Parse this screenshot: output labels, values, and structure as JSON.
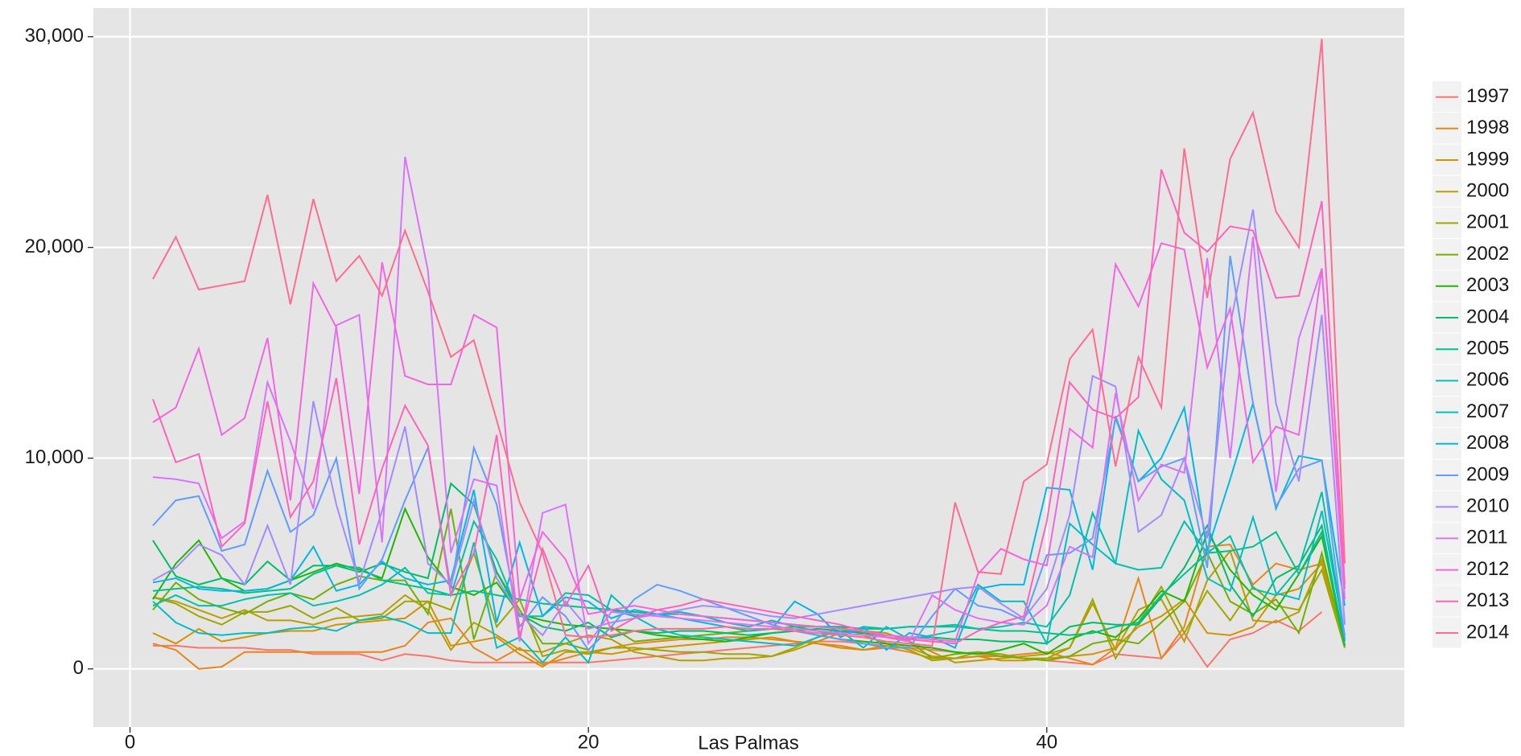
{
  "chart_data": {
    "type": "line",
    "x_label": "Las Palmas",
    "x": [
      1,
      2,
      3,
      4,
      5,
      6,
      7,
      8,
      9,
      10,
      11,
      12,
      13,
      14,
      15,
      16,
      17,
      18,
      19,
      20,
      21,
      22,
      23,
      24,
      25,
      26,
      27,
      28,
      29,
      30,
      31,
      32,
      33,
      34,
      35,
      36,
      37,
      38,
      39,
      40,
      41,
      42,
      43,
      44,
      45,
      46,
      47,
      48,
      49,
      50,
      51,
      52,
      53
    ],
    "xlim": [
      -1.6,
      55.6
    ],
    "xticks": [
      0,
      20,
      40
    ],
    "ylim": [
      -2760,
      31360
    ],
    "yticks": [
      {
        "value": 0,
        "label": "0"
      },
      {
        "value": 10000,
        "label": "10,000"
      },
      {
        "value": 20000,
        "label": "20,000"
      },
      {
        "value": 30000,
        "label": "30,000"
      }
    ],
    "grid": true,
    "legend": "right",
    "series": [
      {
        "name": "1997",
        "color": "#F8766D",
        "values": [
          1100,
          1100,
          1000,
          1000,
          1000,
          900,
          900,
          700,
          700,
          700,
          400,
          700,
          600,
          400,
          300,
          300,
          300,
          300,
          300,
          300,
          400,
          500,
          600,
          700,
          800,
          900,
          1000,
          1100,
          1200,
          1300,
          1300,
          1200,
          1100,
          1000,
          900,
          800,
          700,
          600,
          500,
          400,
          300,
          200,
          700,
          600,
          500,
          1700,
          100,
          1400,
          1700,
          2300,
          1800,
          2700,
          null
        ]
      },
      {
        "name": "1998",
        "color": "#E7861B",
        "values": [
          1200,
          900,
          0,
          100,
          800,
          800,
          800,
          800,
          800,
          800,
          800,
          1100,
          2200,
          2400,
          1000,
          400,
          1000,
          200,
          500,
          800,
          1000,
          1200,
          1300,
          1400,
          1400,
          1500,
          1500,
          1400,
          1300,
          1200,
          1100,
          900,
          1000,
          800,
          500,
          500,
          600,
          600,
          700,
          800,
          500,
          200,
          1000,
          4300,
          500,
          2000,
          5800,
          5900,
          4000,
          5000,
          4700,
          5000,
          1100
        ]
      },
      {
        "name": "1999",
        "color": "#D39200",
        "values": [
          1700,
          1200,
          1900,
          1300,
          1500,
          1700,
          1800,
          1800,
          2100,
          2200,
          2300,
          2400,
          3200,
          1100,
          1300,
          1500,
          700,
          100,
          800,
          800,
          700,
          900,
          1000,
          1100,
          1200,
          1300,
          1400,
          1500,
          1300,
          1200,
          1000,
          900,
          1100,
          1000,
          600,
          500,
          600,
          400,
          400,
          500,
          600,
          700,
          1000,
          2000,
          2500,
          3300,
          1700,
          1600,
          2000,
          3500,
          3800,
          5000,
          1000
        ]
      },
      {
        "name": "2000",
        "color": "#BB9D00",
        "values": [
          3400,
          3200,
          2800,
          2400,
          2800,
          2300,
          2300,
          2100,
          2400,
          2500,
          2600,
          3500,
          2800,
          900,
          2200,
          1600,
          900,
          800,
          1200,
          1600,
          1400,
          800,
          600,
          400,
          400,
          500,
          500,
          600,
          900,
          1300,
          1700,
          1800,
          1700,
          1300,
          800,
          300,
          400,
          500,
          600,
          700,
          1000,
          3100,
          900,
          2800,
          3300,
          1300,
          4200,
          5600,
          2300,
          2200,
          2700,
          5200,
          1100
        ]
      },
      {
        "name": "2001",
        "color": "#9DA700",
        "values": [
          3400,
          3100,
          2500,
          2100,
          2700,
          2700,
          3000,
          2400,
          2900,
          2300,
          2400,
          3200,
          3200,
          2800,
          5500,
          2000,
          3300,
          600,
          900,
          700,
          1000,
          1000,
          900,
          800,
          800,
          700,
          700,
          600,
          1000,
          1500,
          2000,
          1600,
          1200,
          900,
          400,
          500,
          800,
          700,
          500,
          500,
          1000,
          3300,
          500,
          2200,
          3900,
          1700,
          3700,
          2300,
          3900,
          3000,
          2800,
          4700,
          1000
        ]
      },
      {
        "name": "2002",
        "color": "#72B000",
        "values": [
          2800,
          4100,
          3300,
          2900,
          2600,
          3200,
          3600,
          3300,
          4000,
          4400,
          4200,
          4200,
          2600,
          7600,
          1400,
          4600,
          2800,
          1200,
          1200,
          900,
          2000,
          1300,
          1400,
          1500,
          1600,
          1700,
          1800,
          1900,
          2000,
          2000,
          1900,
          1700,
          1500,
          1300,
          500,
          700,
          800,
          600,
          500,
          400,
          600,
          1200,
          1400,
          1200,
          2200,
          3200,
          5500,
          3200,
          2600,
          3300,
          1700,
          5500,
          1100
        ]
      },
      {
        "name": "2003",
        "color": "#1EB800",
        "values": [
          3300,
          5000,
          6100,
          4300,
          3700,
          3800,
          4200,
          4600,
          5000,
          4700,
          4300,
          7600,
          5300,
          3900,
          3500,
          4100,
          2600,
          2300,
          2100,
          2000,
          1900,
          1800,
          1600,
          1500,
          1400,
          1300,
          1500,
          1700,
          1800,
          1600,
          1400,
          1300,
          1200,
          1100,
          1000,
          800,
          700,
          900,
          1200,
          700,
          1400,
          1800,
          1500,
          2400,
          3700,
          3200,
          6500,
          4700,
          3500,
          2800,
          4500,
          6300,
          1100
        ]
      },
      {
        "name": "2004",
        "color": "#00BE67",
        "values": [
          6100,
          4400,
          4000,
          4300,
          4000,
          5100,
          4200,
          4900,
          4900,
          4600,
          5000,
          4600,
          4300,
          8800,
          7800,
          4600,
          2600,
          2000,
          1800,
          2200,
          1500,
          1800,
          1700,
          1800,
          1800,
          1700,
          1600,
          1700,
          1800,
          1900,
          1800,
          1700,
          1600,
          1500,
          1500,
          1400,
          1400,
          1300,
          1300,
          1200,
          2000,
          2200,
          2100,
          2100,
          3400,
          4800,
          6800,
          4000,
          2500,
          4300,
          4900,
          6800,
          1100
        ]
      },
      {
        "name": "2005",
        "color": "#00C08B",
        "values": [
          3700,
          3800,
          3900,
          3800,
          3600,
          3700,
          3800,
          4500,
          4900,
          4800,
          4200,
          4000,
          3800,
          3500,
          3700,
          3500,
          3300,
          3100,
          3000,
          2900,
          2800,
          2700,
          2600,
          2600,
          2500,
          2400,
          2300,
          2200,
          2100,
          2000,
          2000,
          1900,
          1900,
          2000,
          2000,
          2000,
          1900,
          1800,
          1800,
          1700,
          1600,
          1700,
          2000,
          2200,
          3500,
          4500,
          5500,
          5600,
          5800,
          6500,
          4500,
          6500,
          1300
        ]
      },
      {
        "name": "2006",
        "color": "#00C1AB",
        "values": [
          3000,
          3500,
          3000,
          3000,
          3300,
          3500,
          3600,
          3000,
          3200,
          3500,
          4000,
          4800,
          3600,
          3500,
          7000,
          5200,
          2500,
          2500,
          3600,
          3500,
          2800,
          2500,
          2600,
          2700,
          2500,
          2200,
          2000,
          2300,
          2000,
          1800,
          1600,
          2000,
          1900,
          2000,
          2000,
          2100,
          1900,
          2000,
          2200,
          2000,
          3500,
          7400,
          5000,
          4700,
          4800,
          7000,
          5500,
          6300,
          3800,
          3500,
          4800,
          8400,
          1400
        ]
      },
      {
        "name": "2007",
        "color": "#00BFC4",
        "values": [
          3200,
          2200,
          1700,
          1600,
          1700,
          1700,
          1900,
          2000,
          1800,
          2300,
          2500,
          2200,
          1700,
          1700,
          6000,
          1000,
          1500,
          300,
          1500,
          300,
          3500,
          2500,
          1900,
          1600,
          1500,
          1400,
          1300,
          1200,
          1100,
          1500,
          1800,
          1000,
          2000,
          1400,
          1600,
          1800,
          4000,
          3200,
          3200,
          1200,
          6900,
          5900,
          5000,
          11300,
          9000,
          8000,
          4300,
          3700,
          7200,
          3600,
          3300,
          7500,
          1600
        ]
      },
      {
        "name": "2008",
        "color": "#00B8E5",
        "values": [
          4100,
          4300,
          3800,
          3700,
          3700,
          3800,
          4200,
          5800,
          3700,
          4000,
          5100,
          4300,
          4000,
          4200,
          8500,
          2200,
          6000,
          2500,
          3400,
          3200,
          2400,
          2800,
          2600,
          2400,
          2200,
          2000,
          1800,
          1900,
          3200,
          2600,
          1500,
          2000,
          900,
          1700,
          1500,
          1000,
          3800,
          4000,
          4000,
          8600,
          8500,
          4700,
          12000,
          8900,
          10000,
          12400,
          5600,
          9000,
          12600,
          7600,
          10100,
          9900,
          3000
        ]
      },
      {
        "name": "2009",
        "color": "#619CFF",
        "values": [
          6800,
          8000,
          8200,
          5600,
          5900,
          9400,
          6500,
          7300,
          10000,
          3800,
          5200,
          8000,
          10500,
          3800,
          10500,
          7800,
          2000,
          3400,
          2500,
          900,
          2000,
          3300,
          4000,
          3700,
          3300,
          2900,
          2500,
          2100,
          1800,
          1600,
          1400,
          1200,
          1000,
          1000,
          2500,
          3800,
          3000,
          2800,
          2300,
          5400,
          5500,
          6200,
          11900,
          8900,
          9600,
          10000,
          4800,
          19600,
          12600,
          7700,
          9500,
          9900,
          1500
        ]
      },
      {
        "name": "2010",
        "color": "#A58AFF",
        "values": [
          4200,
          4800,
          5900,
          5400,
          4000,
          6800,
          4000,
          12700,
          7800,
          4100,
          7500,
          11500,
          5000,
          4000,
          8000,
          4300,
          2600,
          1600,
          3200,
          1900,
          2200,
          2400,
          2600,
          2800,
          3000,
          2900,
          2700,
          2500,
          2400,
          2600,
          2800,
          3000,
          3200,
          3400,
          3600,
          3800,
          3900,
          3100,
          2400,
          3800,
          7300,
          13900,
          13400,
          6500,
          7300,
          10000,
          6200,
          16300,
          21800,
          12600,
          8900,
          16800,
          2100
        ]
      },
      {
        "name": "2011",
        "color": "#DB72FB",
        "values": [
          9100,
          9000,
          8800,
          6200,
          7000,
          13600,
          10800,
          7600,
          16300,
          16800,
          6000,
          24300,
          18900,
          5500,
          9000,
          8700,
          1300,
          7400,
          7800,
          1200,
          2700,
          2600,
          2500,
          2400,
          2300,
          2200,
          2100,
          2000,
          1900,
          1800,
          1700,
          1600,
          1500,
          1300,
          3500,
          2800,
          2400,
          2200,
          2100,
          3000,
          5800,
          5300,
          13100,
          8000,
          9700,
          9300,
          19500,
          10000,
          20500,
          8400,
          15700,
          19000,
          3800
        ]
      },
      {
        "name": "2012",
        "color": "#F564E3",
        "values": [
          11700,
          12400,
          15200,
          11100,
          11900,
          15700,
          8000,
          18300,
          16200,
          8300,
          19300,
          13900,
          13500,
          13500,
          16800,
          16200,
          3300,
          6500,
          5200,
          2600,
          2800,
          3000,
          2800,
          2600,
          2500,
          2400,
          2300,
          2200,
          2100,
          2000,
          1900,
          1800,
          1600,
          1500,
          1400,
          1300,
          4500,
          5700,
          5200,
          4900,
          11400,
          10500,
          19200,
          17200,
          20200,
          19900,
          14300,
          17100,
          9800,
          11500,
          11100,
          19000,
          3300
        ]
      },
      {
        "name": "2013",
        "color": "#FF62BC",
        "values": [
          12800,
          9800,
          10200,
          5800,
          6900,
          12700,
          7200,
          8900,
          13800,
          5900,
          9500,
          12500,
          10600,
          3500,
          5500,
          11100,
          1500,
          5700,
          3000,
          4900,
          1800,
          2400,
          2800,
          3000,
          3300,
          3100,
          2900,
          2700,
          2500,
          2300,
          2100,
          1800,
          1500,
          1400,
          1300,
          1200,
          1800,
          2200,
          2500,
          7000,
          13600,
          12300,
          11900,
          12900,
          23700,
          20700,
          19800,
          21000,
          20800,
          17600,
          17700,
          22200,
          4000
        ]
      },
      {
        "name": "2014",
        "color": "#FF6C91",
        "values": [
          18500,
          20500,
          18000,
          18200,
          18400,
          22500,
          17300,
          22300,
          18400,
          19600,
          17700,
          20800,
          17900,
          14800,
          15600,
          11800,
          7900,
          5500,
          1600,
          1500,
          1600,
          1800,
          1900,
          1900,
          1900,
          2000,
          1900,
          1900,
          1800,
          1700,
          1600,
          1500,
          1300,
          1200,
          1100,
          7900,
          4600,
          4500,
          8900,
          9700,
          14700,
          16100,
          9600,
          14800,
          12400,
          24700,
          17600,
          24200,
          26400,
          21700,
          20000,
          29900,
          5000
        ]
      }
    ]
  }
}
